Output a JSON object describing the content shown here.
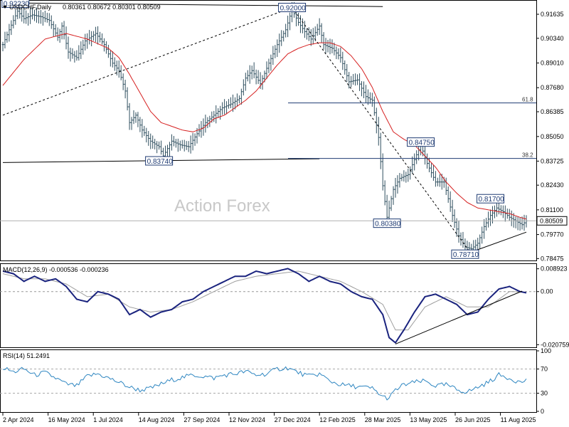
{
  "header": {
    "symbol": "USDCHF,Daily",
    "ohlc": "0.80361 0.80672 0.80301 0.80509"
  },
  "watermark": "Action Forex",
  "colors": {
    "price": "#2f4f5f",
    "ma": "#d62020",
    "trend": "#000000",
    "macd": "#1a237e",
    "signal": "#9e9e9e",
    "rsi": "#2e86c1",
    "annotation": "#1f3b73",
    "current_box": "#ffffff"
  },
  "chart_data": [
    {
      "type": "line",
      "panel": "price",
      "ylim": [
        0.7845,
        0.9225
      ],
      "y_ticks": [
        "0.91635",
        "0.90340",
        "0.89010",
        "0.87680",
        "0.86385",
        "0.85050",
        "0.83725",
        "0.82430",
        "0.81100",
        "0.79770",
        "0.78475"
      ],
      "y_tick_values": [
        0.91635,
        0.9034,
        0.8901,
        0.8768,
        0.86385,
        0.8505,
        0.83725,
        0.8243,
        0.811,
        0.7977,
        0.78475
      ],
      "current_price_label": "0.80509",
      "current_price": 0.80509,
      "x_labels": [
        "2 Apr 2024",
        "16 May 2024",
        "1 Jul 2024",
        "14 Aug 2024",
        "27 Sep 2024",
        "12 Nov 2024",
        "27 Dec 2024",
        "12 Feb 2025",
        "28 Mar 2025",
        "13 May 2025",
        "26 Jun 2025",
        "11 Aug 2025"
      ],
      "price_keys": [
        [
          0,
          0.9
        ],
        [
          3,
          0.908
        ],
        [
          7,
          0.918
        ],
        [
          10,
          0.914
        ],
        [
          14,
          0.916
        ],
        [
          18,
          0.915
        ],
        [
          22,
          0.913
        ],
        [
          26,
          0.904
        ],
        [
          28,
          0.91
        ],
        [
          31,
          0.896
        ],
        [
          35,
          0.893
        ],
        [
          39,
          0.902
        ],
        [
          44,
          0.906
        ],
        [
          48,
          0.9
        ],
        [
          52,
          0.89
        ],
        [
          55,
          0.886
        ],
        [
          58,
          0.875
        ],
        [
          60,
          0.858
        ],
        [
          63,
          0.862
        ],
        [
          66,
          0.854
        ],
        [
          70,
          0.848
        ],
        [
          74,
          0.845
        ],
        [
          76,
          0.84
        ],
        [
          80,
          0.848
        ],
        [
          84,
          0.846
        ],
        [
          88,
          0.845
        ],
        [
          92,
          0.852
        ],
        [
          96,
          0.858
        ],
        [
          100,
          0.862
        ],
        [
          104,
          0.866
        ],
        [
          108,
          0.868
        ],
        [
          112,
          0.871
        ],
        [
          115,
          0.882
        ],
        [
          118,
          0.886
        ],
        [
          122,
          0.879
        ],
        [
          126,
          0.89
        ],
        [
          130,
          0.9
        ],
        [
          134,
          0.908
        ],
        [
          137,
          0.919
        ],
        [
          140,
          0.912
        ],
        [
          143,
          0.907
        ],
        [
          146,
          0.903
        ],
        [
          150,
          0.91
        ],
        [
          152,
          0.9
        ],
        [
          156,
          0.898
        ],
        [
          160,
          0.893
        ],
        [
          164,
          0.88
        ],
        [
          168,
          0.881
        ],
        [
          172,
          0.872
        ],
        [
          175,
          0.87
        ],
        [
          178,
          0.85
        ],
        [
          180,
          0.824
        ],
        [
          182,
          0.807
        ],
        [
          185,
          0.822
        ],
        [
          188,
          0.828
        ],
        [
          192,
          0.83
        ],
        [
          195,
          0.838
        ],
        [
          198,
          0.846
        ],
        [
          201,
          0.836
        ],
        [
          205,
          0.826
        ],
        [
          209,
          0.826
        ],
        [
          213,
          0.808
        ],
        [
          216,
          0.797
        ],
        [
          219,
          0.791
        ],
        [
          222,
          0.79
        ],
        [
          225,
          0.793
        ],
        [
          228,
          0.802
        ],
        [
          231,
          0.808
        ],
        [
          234,
          0.812
        ],
        [
          237,
          0.81
        ],
        [
          240,
          0.807
        ],
        [
          243,
          0.805
        ],
        [
          246,
          0.803
        ],
        [
          248,
          0.805
        ]
      ],
      "ma_keys": [
        [
          0,
          0.878
        ],
        [
          10,
          0.892
        ],
        [
          20,
          0.903
        ],
        [
          30,
          0.906
        ],
        [
          40,
          0.903
        ],
        [
          50,
          0.898
        ],
        [
          55,
          0.893
        ],
        [
          60,
          0.884
        ],
        [
          65,
          0.874
        ],
        [
          70,
          0.864
        ],
        [
          75,
          0.858
        ],
        [
          80,
          0.856
        ],
        [
          85,
          0.854
        ],
        [
          90,
          0.853
        ],
        [
          95,
          0.855
        ],
        [
          100,
          0.86
        ],
        [
          105,
          0.862
        ],
        [
          110,
          0.866
        ],
        [
          115,
          0.87
        ],
        [
          120,
          0.875
        ],
        [
          125,
          0.882
        ],
        [
          130,
          0.889
        ],
        [
          135,
          0.895
        ],
        [
          140,
          0.898
        ],
        [
          145,
          0.9
        ],
        [
          150,
          0.901
        ],
        [
          155,
          0.901
        ],
        [
          160,
          0.899
        ],
        [
          165,
          0.894
        ],
        [
          170,
          0.887
        ],
        [
          175,
          0.877
        ],
        [
          180,
          0.864
        ],
        [
          185,
          0.853
        ],
        [
          190,
          0.849
        ],
        [
          195,
          0.846
        ],
        [
          200,
          0.84
        ],
        [
          205,
          0.834
        ],
        [
          210,
          0.826
        ],
        [
          215,
          0.82
        ],
        [
          220,
          0.815
        ],
        [
          225,
          0.812
        ],
        [
          230,
          0.811
        ],
        [
          235,
          0.81
        ],
        [
          240,
          0.809
        ],
        [
          245,
          0.807
        ],
        [
          248,
          0.806
        ]
      ],
      "annotations": [
        {
          "label": "0.92230",
          "bar": 6,
          "value": 0.9223
        },
        {
          "label": "0.92000",
          "bar": 137,
          "value": 0.92
        },
        {
          "label": "0.83740",
          "bar": 74,
          "value": 0.8374
        },
        {
          "label": "0.84750",
          "bar": 198,
          "value": 0.8475
        },
        {
          "label": "0.80380",
          "bar": 182,
          "value": 0.8038
        },
        {
          "label": "0.81700",
          "bar": 231,
          "value": 0.817
        },
        {
          "label": "0.78710",
          "bar": 219,
          "value": 0.7871
        }
      ],
      "fib_levels": [
        {
          "label": "61.8",
          "value": 0.8686
        },
        {
          "label": "38.2",
          "value": 0.8387
        }
      ],
      "trendlines": [
        {
          "x1": 0,
          "y1": 0.9225,
          "x2": 180,
          "y2": 0.9205,
          "style": "solid"
        },
        {
          "x1": 0,
          "y1": 0.8365,
          "x2": 150,
          "y2": 0.8385,
          "style": "solid"
        },
        {
          "x1": 0,
          "y1": 0.862,
          "x2": 137,
          "y2": 0.92,
          "style": "dashed"
        },
        {
          "x1": 137,
          "y1": 0.92,
          "x2": 222,
          "y2": 0.7871,
          "style": "dashed"
        },
        {
          "x1": 219,
          "y1": 0.7871,
          "x2": 248,
          "y2": 0.799,
          "style": "solid"
        }
      ]
    },
    {
      "type": "line",
      "panel": "macd",
      "title": "MACD(12,26,9) -0.000536 -0.000236",
      "ylim": [
        -0.0215,
        0.0105
      ],
      "y_ticks": [
        "0.008923",
        "0.00",
        "-0.020759"
      ],
      "y_tick_values": [
        0.008923,
        0.0,
        -0.020759
      ],
      "current_label": "0.00",
      "macd_keys": [
        [
          0,
          0.008
        ],
        [
          5,
          0.007
        ],
        [
          10,
          0.004
        ],
        [
          15,
          0.006
        ],
        [
          20,
          0.004
        ],
        [
          25,
          0.005
        ],
        [
          30,
          0.002
        ],
        [
          35,
          -0.003
        ],
        [
          40,
          -0.004
        ],
        [
          45,
          0.0
        ],
        [
          50,
          -0.001
        ],
        [
          55,
          -0.003
        ],
        [
          60,
          -0.009
        ],
        [
          65,
          -0.007
        ],
        [
          70,
          -0.01
        ],
        [
          75,
          -0.008
        ],
        [
          80,
          -0.007
        ],
        [
          85,
          -0.004
        ],
        [
          90,
          -0.003
        ],
        [
          95,
          0.0
        ],
        [
          100,
          0.002
        ],
        [
          105,
          0.004
        ],
        [
          110,
          0.006
        ],
        [
          115,
          0.006
        ],
        [
          120,
          0.008
        ],
        [
          125,
          0.007
        ],
        [
          130,
          0.008
        ],
        [
          135,
          0.009
        ],
        [
          140,
          0.007
        ],
        [
          145,
          0.004
        ],
        [
          150,
          0.006
        ],
        [
          155,
          0.004
        ],
        [
          160,
          0.003
        ],
        [
          165,
          0.0
        ],
        [
          170,
          -0.002
        ],
        [
          175,
          -0.003
        ],
        [
          180,
          -0.009
        ],
        [
          183,
          -0.018
        ],
        [
          186,
          -0.02
        ],
        [
          190,
          -0.015
        ],
        [
          195,
          -0.008
        ],
        [
          200,
          -0.002
        ],
        [
          205,
          -0.001
        ],
        [
          210,
          -0.003
        ],
        [
          215,
          -0.005
        ],
        [
          220,
          -0.009
        ],
        [
          225,
          -0.008
        ],
        [
          230,
          -0.003
        ],
        [
          235,
          0.001
        ],
        [
          240,
          0.002
        ],
        [
          245,
          0.0
        ],
        [
          248,
          -0.0005
        ]
      ],
      "signal_keys": [
        [
          0,
          0.007
        ],
        [
          10,
          0.005
        ],
        [
          20,
          0.005
        ],
        [
          30,
          0.003
        ],
        [
          40,
          -0.002
        ],
        [
          50,
          -0.001
        ],
        [
          60,
          -0.006
        ],
        [
          70,
          -0.008
        ],
        [
          80,
          -0.007
        ],
        [
          90,
          -0.004
        ],
        [
          100,
          0.0
        ],
        [
          110,
          0.004
        ],
        [
          120,
          0.006
        ],
        [
          130,
          0.007
        ],
        [
          140,
          0.008
        ],
        [
          150,
          0.006
        ],
        [
          160,
          0.004
        ],
        [
          170,
          0.0
        ],
        [
          180,
          -0.005
        ],
        [
          186,
          -0.015
        ],
        [
          192,
          -0.015
        ],
        [
          200,
          -0.006
        ],
        [
          210,
          -0.002
        ],
        [
          220,
          -0.006
        ],
        [
          230,
          -0.006
        ],
        [
          240,
          0.0
        ],
        [
          248,
          -0.0002
        ]
      ]
    },
    {
      "type": "line",
      "panel": "rsi",
      "title": "RSI(14) 51.2491",
      "ylim": [
        0,
        100
      ],
      "y_ticks": [
        "100",
        "70",
        "30",
        "0"
      ],
      "y_tick_values": [
        100,
        70,
        30,
        0
      ],
      "rsi_keys": [
        [
          0,
          72
        ],
        [
          5,
          65
        ],
        [
          10,
          70
        ],
        [
          15,
          60
        ],
        [
          20,
          64
        ],
        [
          25,
          55
        ],
        [
          30,
          45
        ],
        [
          35,
          42
        ],
        [
          40,
          58
        ],
        [
          45,
          62
        ],
        [
          50,
          55
        ],
        [
          55,
          48
        ],
        [
          60,
          40
        ],
        [
          65,
          35
        ],
        [
          70,
          38
        ],
        [
          75,
          45
        ],
        [
          80,
          52
        ],
        [
          85,
          56
        ],
        [
          90,
          60
        ],
        [
          95,
          58
        ],
        [
          100,
          55
        ],
        [
          105,
          60
        ],
        [
          110,
          62
        ],
        [
          115,
          66
        ],
        [
          120,
          60
        ],
        [
          125,
          62
        ],
        [
          130,
          70
        ],
        [
          135,
          72
        ],
        [
          140,
          64
        ],
        [
          145,
          58
        ],
        [
          150,
          62
        ],
        [
          155,
          50
        ],
        [
          160,
          44
        ],
        [
          165,
          42
        ],
        [
          170,
          40
        ],
        [
          175,
          38
        ],
        [
          180,
          24
        ],
        [
          183,
          22
        ],
        [
          186,
          35
        ],
        [
          190,
          44
        ],
        [
          195,
          48
        ],
        [
          200,
          50
        ],
        [
          205,
          42
        ],
        [
          210,
          44
        ],
        [
          215,
          36
        ],
        [
          220,
          32
        ],
        [
          225,
          40
        ],
        [
          230,
          48
        ],
        [
          235,
          60
        ],
        [
          240,
          55
        ],
        [
          245,
          48
        ],
        [
          248,
          51.2
        ]
      ]
    }
  ]
}
